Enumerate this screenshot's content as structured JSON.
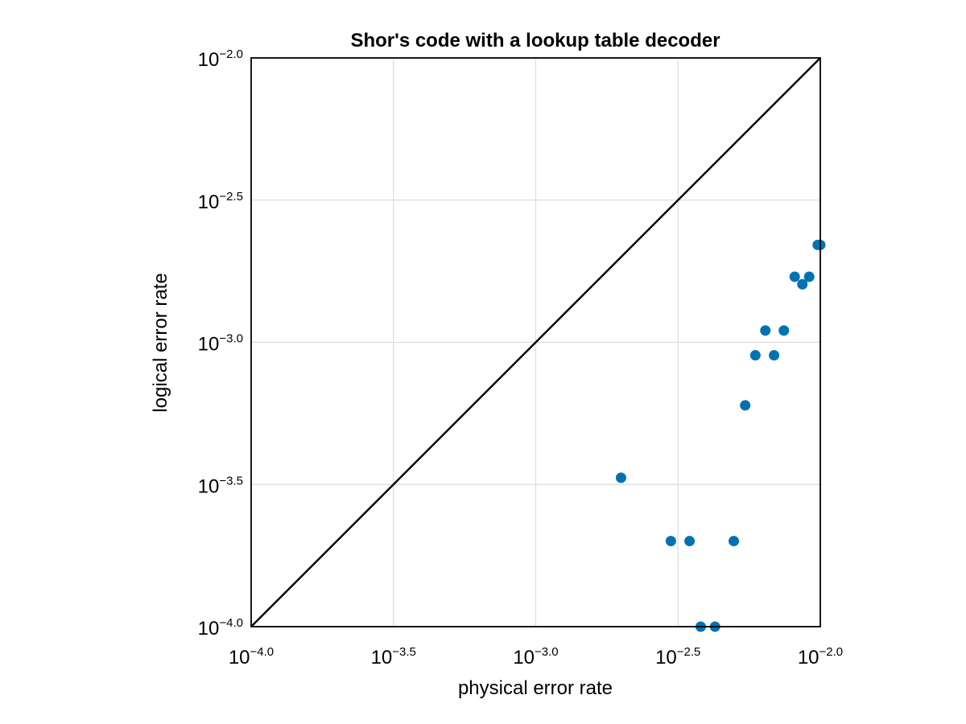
{
  "chart_data": {
    "type": "scatter",
    "title": "Shor's code with a lookup table decoder",
    "xlabel": "physical error rate",
    "ylabel": "logical error rate",
    "xscale": "log10",
    "yscale": "log10",
    "xlim": [
      0.0001,
      0.01
    ],
    "ylim": [
      0.0001,
      0.01
    ],
    "grid": true,
    "xticks": [
      {
        "base": "10",
        "exp": "−4.0"
      },
      {
        "base": "10",
        "exp": "−3.5"
      },
      {
        "base": "10",
        "exp": "−3.0"
      },
      {
        "base": "10",
        "exp": "−2.5"
      },
      {
        "base": "10",
        "exp": "−2.0"
      }
    ],
    "yticks": [
      {
        "base": "10",
        "exp": "−4.0"
      },
      {
        "base": "10",
        "exp": "−3.5"
      },
      {
        "base": "10",
        "exp": "−3.0"
      },
      {
        "base": "10",
        "exp": "−2.5"
      },
      {
        "base": "10",
        "exp": "−2.0"
      }
    ],
    "reference_line": {
      "x": [
        0.0001,
        0.01
      ],
      "y": [
        0.0001,
        0.01
      ],
      "color": "#000000"
    },
    "series": [
      {
        "color": "#0072b2",
        "points": [
          {
            "x": 0.001994,
            "y": 0.000334
          },
          {
            "x": 0.002985,
            "y": 0.0002
          },
          {
            "x": 0.003472,
            "y": 0.0002
          },
          {
            "x": 0.004966,
            "y": 0.0002
          },
          {
            "x": 0.0038,
            "y": 0.0001
          },
          {
            "x": 0.004266,
            "y": 0.0001
          },
          {
            "x": 0.005445,
            "y": 0.0006
          },
          {
            "x": 0.005913,
            "y": 0.0009
          },
          {
            "x": 0.00688,
            "y": 0.0009
          },
          {
            "x": 0.006412,
            "y": 0.0011
          },
          {
            "x": 0.007447,
            "y": 0.0011
          },
          {
            "x": 0.008128,
            "y": 0.0017
          },
          {
            "x": 0.00865,
            "y": 0.0016
          },
          {
            "x": 0.009141,
            "y": 0.0017
          },
          {
            "x": 0.009795,
            "y": 0.0022
          },
          {
            "x": 0.01,
            "y": 0.0022
          }
        ]
      }
    ]
  }
}
